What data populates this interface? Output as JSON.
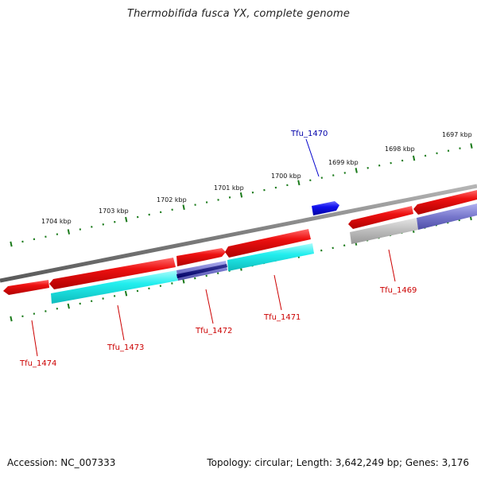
{
  "title": "Thermobifida fusca YX, complete genome",
  "footer": {
    "accession": "Accession: NC_007333",
    "topology": "Topology: circular; Length: 3,642,249 bp; Genes: 3,176"
  },
  "scale_labels": [
    "1697 kbp",
    "1698 kbp",
    "1699 kbp",
    "1700 kbp",
    "1701 kbp",
    "1702 kbp",
    "1703 kbp",
    "1704 kbp"
  ],
  "gene_labels": [
    "Tfu_1470",
    "Tfu_1469",
    "Tfu_1471",
    "Tfu_1472",
    "Tfu_1473",
    "Tfu_1474"
  ],
  "colors": {
    "backbone": "#8a8a8a",
    "scale": "#1a7a1a",
    "red_gene": "#ee1111",
    "cyan_gene": "#22eeee",
    "blue_gene": "#1111ee",
    "label_red": "#cc0000",
    "label_blue": "#0000aa",
    "gray_band": "#bbbbbb",
    "purple_band": "#7777cc"
  }
}
